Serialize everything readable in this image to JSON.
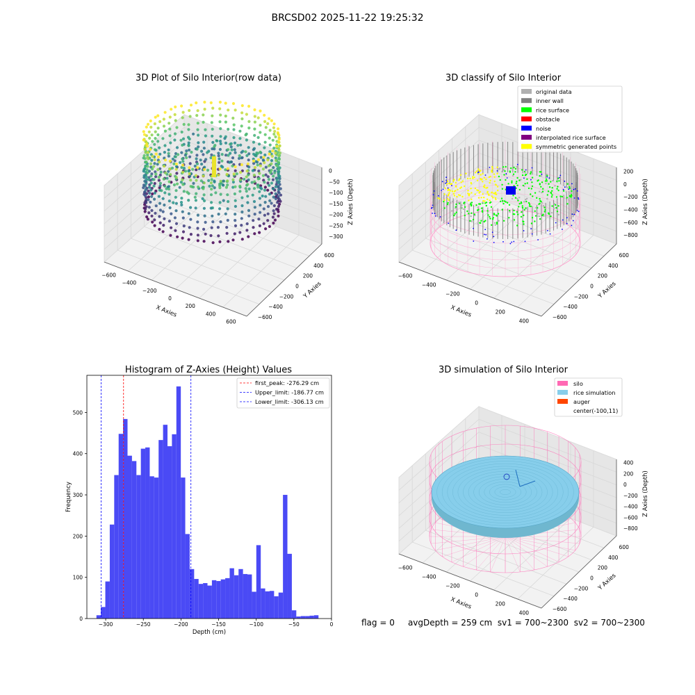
{
  "suptitle": "BRCSD02 2025-11-22 19:25:32",
  "footer": {
    "flag": "flag = 0",
    "avg_depth": "avgDepth = 259 cm",
    "sv1": "sv1 = 700~2300",
    "sv2": "sv2 = 700~2300"
  },
  "chart_data": [
    {
      "type": "scatter",
      "title": "3D Plot of Silo Interior(row data)",
      "xlabel": "X Axies",
      "ylabel": "Y Axies",
      "zlabel": "Z Axies (Depth)",
      "x_ticks": [
        "−600",
        "−400",
        "−200",
        "0",
        "200",
        "400",
        "600"
      ],
      "y_ticks": [
        "−600",
        "−400",
        "−200",
        "0",
        "200",
        "400",
        "600"
      ],
      "z_ticks": [
        "0",
        "−50",
        "−100",
        "−150",
        "−200",
        "−250",
        "−300"
      ],
      "colormap": [
        "#440154",
        "#3b528b",
        "#21918c",
        "#5ec962",
        "#fde725"
      ]
    },
    {
      "type": "scatter",
      "title": "3D classify of Silo Interior",
      "xlabel": "X Axies",
      "ylabel": "Y Axies",
      "zlabel": "Z Axies (Depth)",
      "x_ticks": [
        "−600",
        "−400",
        "−200",
        "0",
        "200",
        "400"
      ],
      "y_ticks": [
        "−600",
        "−400",
        "−200",
        "0",
        "200",
        "400",
        "600"
      ],
      "z_ticks": [
        "200",
        "0",
        "−200",
        "−400",
        "−600",
        "−800"
      ],
      "legend": [
        {
          "label": "original data",
          "color": "#b0b0b0"
        },
        {
          "label": "inner wall",
          "color": "#808080"
        },
        {
          "label": "rice surface",
          "color": "#00ff00"
        },
        {
          "label": "obstacle",
          "color": "#ff0000"
        },
        {
          "label": "noise",
          "color": "#0000ff"
        },
        {
          "label": "interpolated rice surface",
          "color": "#800080"
        },
        {
          "label": "symmetric generated points",
          "color": "#ffff00"
        }
      ]
    },
    {
      "type": "bar",
      "title": "Histogram of Z-Axies (Height) Values",
      "xlabel": "Depth (cm)",
      "ylabel": "Frequency",
      "xlim": [
        -325,
        0
      ],
      "ylim": [
        0,
        590
      ],
      "x_ticks": [
        {
          "value": -300,
          "label": "−300"
        },
        {
          "value": -250,
          "label": "−250"
        },
        {
          "value": -200,
          "label": "−200"
        },
        {
          "value": -150,
          "label": "−150"
        },
        {
          "value": -100,
          "label": "−100"
        },
        {
          "value": -50,
          "label": "−50"
        },
        {
          "value": 0,
          "label": "0"
        }
      ],
      "y_ticks": [
        0,
        100,
        200,
        300,
        400,
        500
      ],
      "bar_color": "#4a4af5",
      "bin_width": 5.9,
      "bin_starts": [
        -312.3,
        -306.4,
        -300.5,
        -294.6,
        -288.7,
        -282.8,
        -276.9,
        -271.0,
        -265.1,
        -259.2,
        -253.3,
        -247.4,
        -241.5,
        -235.6,
        -229.7,
        -223.8,
        -217.9,
        -212.0,
        -206.1,
        -200.2,
        -194.3,
        -188.4,
        -182.5,
        -176.6,
        -170.7,
        -164.8,
        -158.9,
        -153.0,
        -147.1,
        -141.2,
        -135.3,
        -129.4,
        -123.5,
        -117.6,
        -111.7,
        -105.8,
        -99.9,
        -94.0,
        -88.1,
        -82.2,
        -76.3,
        -70.4,
        -64.5,
        -58.6,
        -52.7,
        -46.8,
        -40.9,
        -35.0,
        -29.1,
        -23.2,
        -17.3
      ],
      "values": [
        8,
        28,
        90,
        228,
        348,
        448,
        484,
        395,
        382,
        348,
        412,
        415,
        345,
        342,
        433,
        470,
        418,
        447,
        563,
        342,
        205,
        120,
        96,
        84,
        86,
        80,
        93,
        91,
        95,
        98,
        122,
        105,
        120,
        108,
        107,
        65,
        178,
        73,
        66,
        67,
        54,
        63,
        300,
        157,
        20,
        5,
        6,
        6,
        7,
        8,
        0
      ],
      "lines": [
        {
          "label": "first_peak: -276.29 cm",
          "x": -276.29,
          "color": "#ff0000"
        },
        {
          "label": "Upper_limit: -186.77 cm",
          "x": -186.77,
          "color": "#0000ff"
        },
        {
          "label": "Lower_limit: -306.13 cm",
          "x": -306.13,
          "color": "#0000ff"
        }
      ]
    },
    {
      "type": "scatter",
      "title": "3D simulation of Silo Interior",
      "xlabel": "X Axies",
      "ylabel": "Y Axies",
      "zlabel": "Z Axies (Depth)",
      "x_ticks": [
        "−600",
        "−400",
        "−200",
        "0",
        "200",
        "400"
      ],
      "y_ticks": [
        "−600",
        "−400",
        "−200",
        "0",
        "200",
        "400",
        "600"
      ],
      "z_ticks": [
        "400",
        "200",
        "0",
        "−200",
        "−400",
        "−600",
        "−800"
      ],
      "legend": [
        {
          "label": "silo",
          "color": "#ff69b4"
        },
        {
          "label": "rice simulation",
          "color": "#87ceeb"
        },
        {
          "label": "auger",
          "color": "#ff4500"
        },
        {
          "label": "center(-100,11)",
          "color": ""
        }
      ]
    }
  ]
}
